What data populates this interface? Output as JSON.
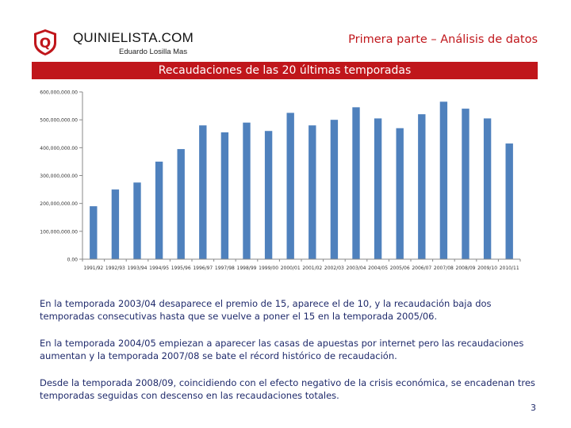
{
  "header": {
    "brand": "QUINIELISTA.COM",
    "author": "Eduardo Losilla Mas",
    "section": "Primera parte – Análisis de datos",
    "logo_letter": "Q"
  },
  "banner": {
    "title": "Recaudaciones de las 20 últimas temporadas"
  },
  "colors": {
    "accent": "#c0161b",
    "bar": "#4f81bd",
    "text": "#1f2a6b"
  },
  "chart_data": {
    "type": "bar",
    "title": "Recaudaciones de las 20 últimas temporadas",
    "xlabel": "",
    "ylabel": "",
    "ylim": [
      0,
      600000000
    ],
    "grid": false,
    "legend": "none",
    "y_ticks": [
      0,
      100000000,
      200000000,
      300000000,
      400000000,
      500000000,
      600000000
    ],
    "y_tick_labels": [
      "0.00",
      "100,000,000.00",
      "200,000,000.00",
      "300,000,000.00",
      "400,000,000.00",
      "500,000,000.00",
      "600,000,000.00"
    ],
    "categories": [
      "1991/92",
      "1992/93",
      "1993/94",
      "1994/95",
      "1995/96",
      "1996/97",
      "1997/98",
      "1998/99",
      "1999/00",
      "2000/01",
      "2001/02",
      "2002/03",
      "2003/04",
      "2004/05",
      "2005/06",
      "2006/07",
      "2007/08",
      "2008/09",
      "2009/10",
      "2010/11"
    ],
    "values": [
      190000000,
      250000000,
      275000000,
      350000000,
      395000000,
      480000000,
      455000000,
      490000000,
      460000000,
      525000000,
      480000000,
      500000000,
      545000000,
      505000000,
      470000000,
      520000000,
      565000000,
      540000000,
      505000000,
      415000000
    ]
  },
  "paragraphs": [
    "En la temporada 2003/04 desaparece el premio de 15, aparece el de 10, y la recaudación baja dos temporadas consecutivas hasta que se vuelve a poner el 15 en la temporada 2005/06.",
    "En la temporada 2004/05 empiezan a aparecer las casas de apuestas por internet pero las recaudaciones aumentan y la temporada 2007/08 se bate el récord histórico de recaudación.",
    "Desde la temporada 2008/09, coincidiendo con el efecto negativo de la crisis económica, se encadenan tres temporadas seguidas con descenso en las recaudaciones totales."
  ],
  "page_number": "3"
}
